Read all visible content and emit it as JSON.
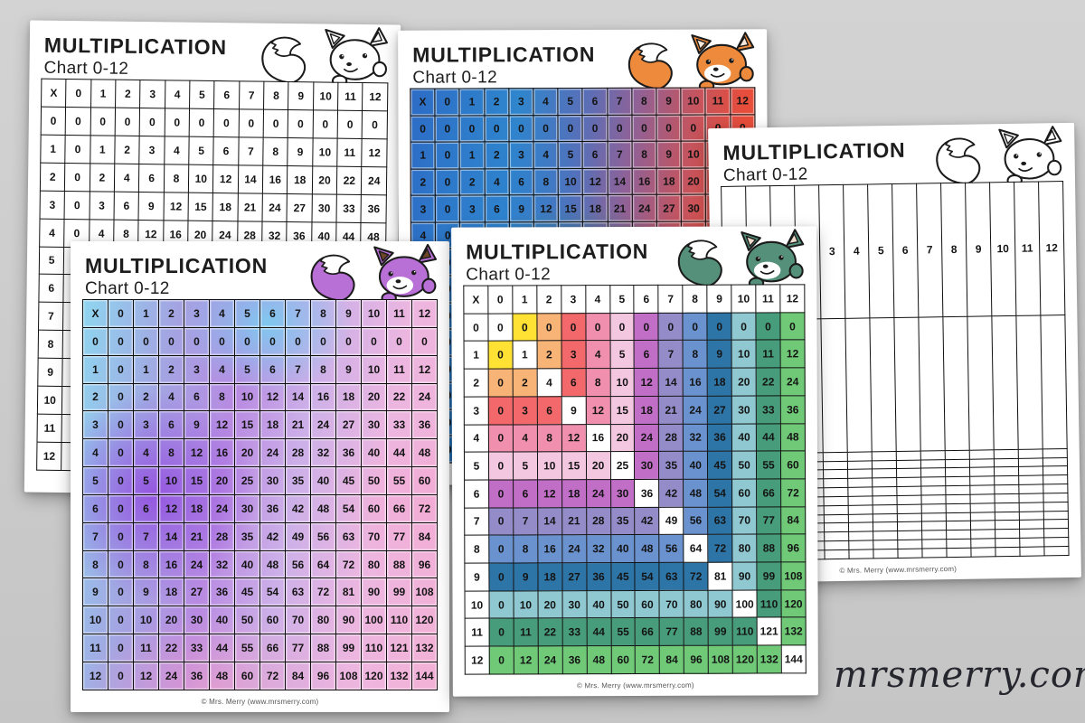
{
  "background_color": "#cbcbcb",
  "logo": {
    "text": "mrsmerry.com",
    "color": "#26262e"
  },
  "shared": {
    "title_line1": "MULTIPLICATION",
    "title_line2": "Chart 0-12",
    "footer": "© Mrs. Merry (www.mrsmerry.com)",
    "headers": [
      "X",
      "0",
      "1",
      "2",
      "3",
      "4",
      "5",
      "6",
      "7",
      "8",
      "9",
      "10",
      "11",
      "12"
    ],
    "products": [
      [
        0,
        0,
        0,
        0,
        0,
        0,
        0,
        0,
        0,
        0,
        0,
        0,
        0
      ],
      [
        0,
        1,
        2,
        3,
        4,
        5,
        6,
        7,
        8,
        9,
        10,
        11,
        12
      ],
      [
        0,
        2,
        4,
        6,
        8,
        10,
        12,
        14,
        16,
        18,
        20,
        22,
        24
      ],
      [
        0,
        3,
        6,
        9,
        12,
        15,
        18,
        21,
        24,
        27,
        30,
        33,
        36
      ],
      [
        0,
        4,
        8,
        12,
        16,
        20,
        24,
        28,
        32,
        36,
        40,
        44,
        48
      ],
      [
        0,
        5,
        10,
        15,
        20,
        25,
        30,
        35,
        40,
        45,
        50,
        55,
        60
      ],
      [
        0,
        6,
        12,
        18,
        24,
        30,
        36,
        42,
        48,
        54,
        60,
        66,
        72
      ],
      [
        0,
        7,
        14,
        21,
        28,
        35,
        42,
        49,
        56,
        63,
        70,
        77,
        84
      ],
      [
        0,
        8,
        16,
        24,
        32,
        40,
        48,
        56,
        64,
        72,
        80,
        88,
        96
      ],
      [
        0,
        9,
        18,
        27,
        36,
        45,
        54,
        63,
        72,
        81,
        90,
        99,
        108
      ],
      [
        0,
        10,
        20,
        30,
        40,
        50,
        60,
        70,
        80,
        90,
        100,
        110,
        120
      ],
      [
        0,
        11,
        22,
        33,
        44,
        55,
        66,
        77,
        88,
        99,
        110,
        121,
        132
      ],
      [
        0,
        12,
        24,
        36,
        48,
        60,
        72,
        84,
        96,
        108,
        120,
        132,
        144
      ]
    ]
  },
  "pages": [
    {
      "id": "bw",
      "label": "black-and-white chart",
      "variant": "plain",
      "fox_color": "#ffffff",
      "fox_inner": "#ffffff"
    },
    {
      "id": "rainbow",
      "label": "rainbow gradient chart",
      "variant": "gradient-blue",
      "fox_color": "#ee8a3c",
      "fox_inner": "#f7e8d9"
    },
    {
      "id": "blank",
      "label": "blank practice chart",
      "variant": "blank",
      "fox_color": "#ffffff",
      "fox_inner": "#ffffff",
      "row0_label": "0"
    },
    {
      "id": "purple",
      "label": "pastel purple chart",
      "variant": "gradient-purple",
      "fox_color": "#b86fd6",
      "fox_inner": "#6e4526"
    },
    {
      "id": "green",
      "label": "color band chart with white squares diagonal",
      "variant": "bands",
      "fox_color": "#55917a",
      "fox_inner": "#eedccd",
      "band_colors": [
        "#ffffff",
        "#ffe234",
        "#f8b377",
        "#f3696b",
        "#f090ae",
        "#f4c7e1",
        "#c06ec6",
        "#938cc9",
        "#6a92cf",
        "#2e75a7",
        "#8fc8d0",
        "#479c7b",
        "#6fc977"
      ]
    }
  ]
}
